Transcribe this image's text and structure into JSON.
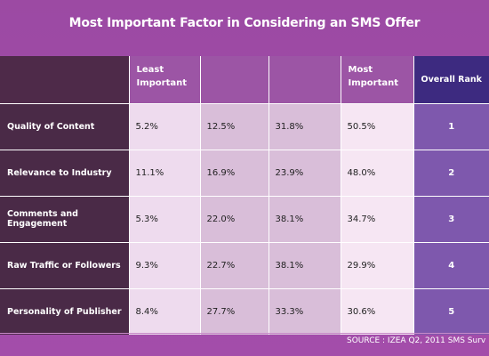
{
  "title": "Most Important Factor in Considering an SMS Offer",
  "chart_data": {
    "type": "table",
    "title": "Most Important Factor in Considering an SMS Offer",
    "columns": [
      "",
      "Least Important",
      "",
      "",
      "Most Important",
      "Overall Rank"
    ],
    "rows": [
      {
        "label": "Quality of Content",
        "values": [
          "5.2%",
          "12.5%",
          "31.8%",
          "50.5%"
        ],
        "rank": "1"
      },
      {
        "label": "Relevance to Industry",
        "values": [
          "11.1%",
          "16.9%",
          "23.9%",
          "48.0%"
        ],
        "rank": "2"
      },
      {
        "label": "Comments and Engagement",
        "values": [
          "5.3%",
          "22.0%",
          "38.1%",
          "34.7%"
        ],
        "rank": "3"
      },
      {
        "label": "Raw Traffic or Followers",
        "values": [
          "9.3%",
          "22.7%",
          "38.1%",
          "29.9%"
        ],
        "rank": "4"
      },
      {
        "label": "Personality of Publisher",
        "values": [
          "8.4%",
          "27.7%",
          "33.3%",
          "30.6%"
        ],
        "rank": "5"
      }
    ]
  },
  "source": "SOURCE : IZEA Q2, 2011 SMS Surv",
  "colors": {
    "background": "#9f4aa8",
    "row_label_bg": "#4a2a47",
    "rank_bg": "#7e58ad",
    "rank_header_bg": "#3d2a80"
  }
}
